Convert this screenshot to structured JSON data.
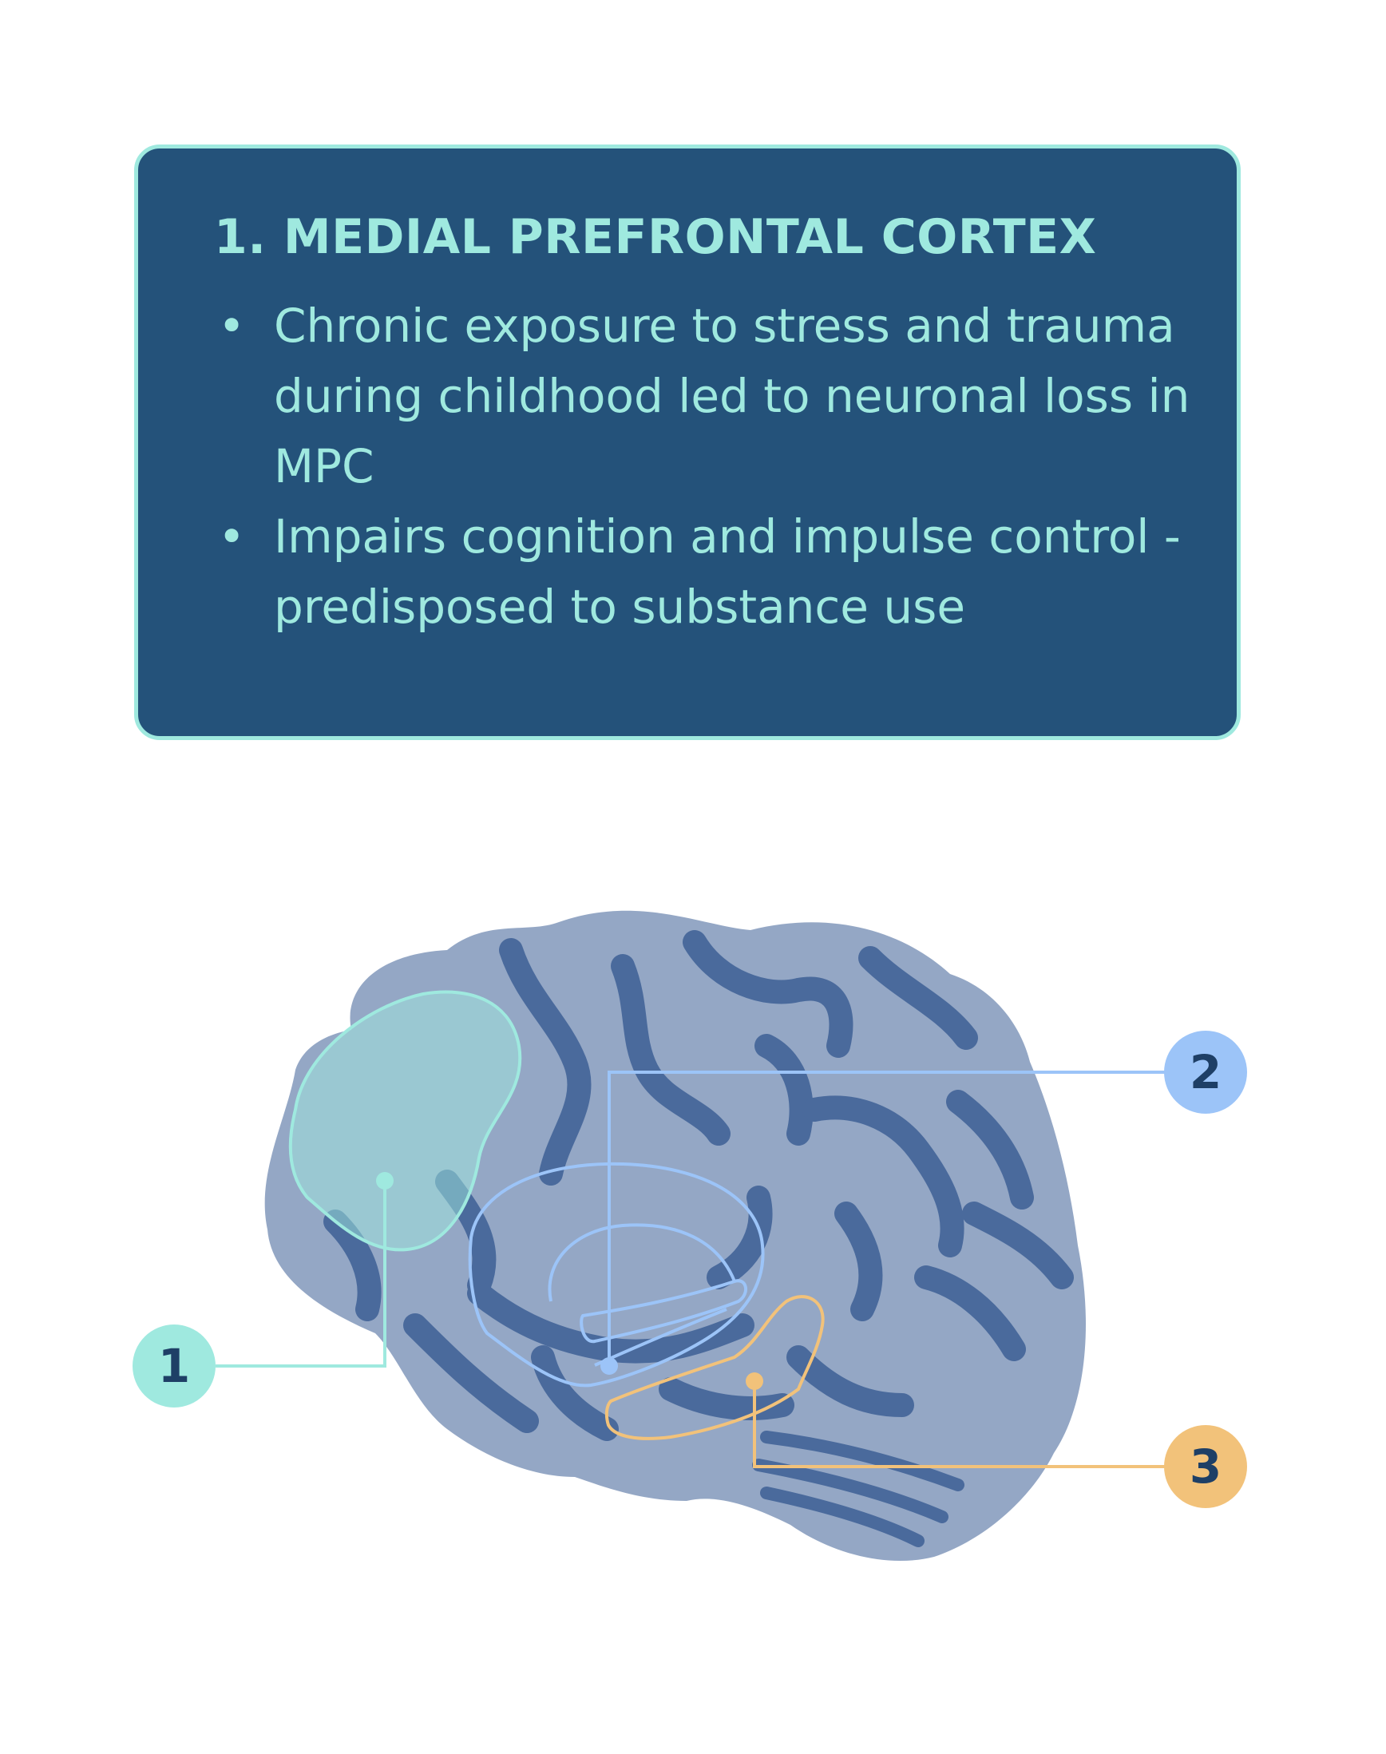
{
  "card": {
    "title": "1. MEDIAL PREFRONTAL CORTEX",
    "bullets": [
      "Chronic exposure to stress and trauma during childhood led to neuronal loss in MPC",
      "Impairs cognition and impulse control - predisposed to substance use"
    ]
  },
  "markers": [
    {
      "label": "1",
      "color": "#9fe9df"
    },
    {
      "label": "2",
      "color": "#9cc4f8"
    },
    {
      "label": "3",
      "color": "#f2c27a"
    }
  ],
  "colors": {
    "card_background": "#24527a",
    "card_text": "#9fe9df",
    "brain_fill": "#94a7c5",
    "brain_sulci": "#4a6a9c",
    "region_1": "#9fe9df",
    "region_2": "#9cc4f8",
    "region_3": "#f2c27a"
  }
}
